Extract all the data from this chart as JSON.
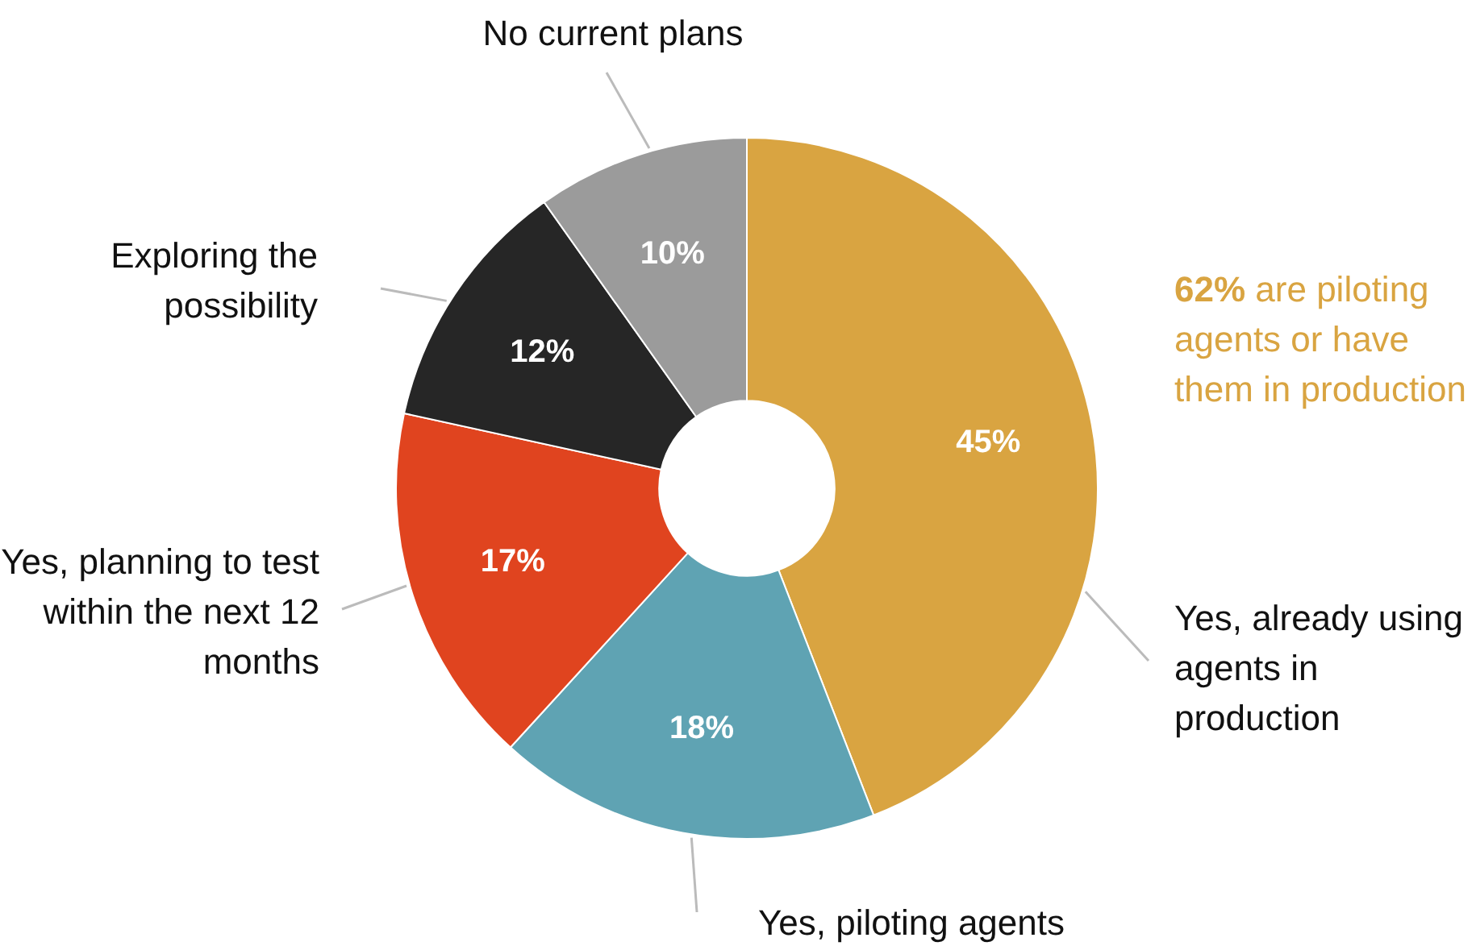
{
  "chart_data": {
    "type": "donut",
    "categories": [
      "Yes, already using agents in production",
      "Yes, piloting agents",
      "Yes, planning to test within the next 12 months",
      "Exploring the possibility",
      "No current plans"
    ],
    "values": [
      45,
      18,
      17,
      12,
      10
    ],
    "value_labels": [
      "45%",
      "18%",
      "17%",
      "12%",
      "10%"
    ],
    "colors": [
      "#d9a441",
      "#5fa3b3",
      "#e0441f",
      "#262626",
      "#9b9b9b"
    ],
    "annotations": [
      "62% are piloting agents or have them in production"
    ],
    "legend": false
  }
}
